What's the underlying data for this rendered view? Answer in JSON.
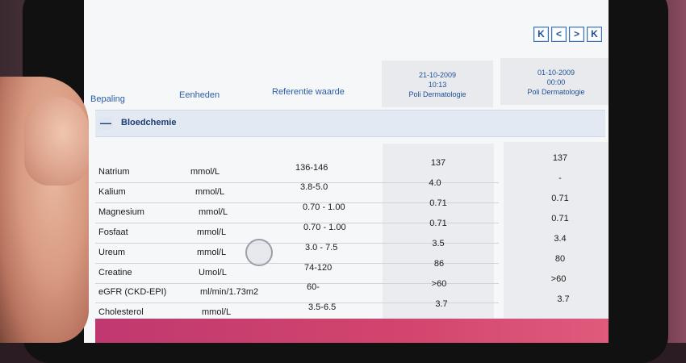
{
  "nav": {
    "first": "K",
    "prev": "<",
    "next": ">",
    "last": "K"
  },
  "columns": {
    "bepaling": "Bepaling",
    "eenheden": "Eenheden",
    "referentie": "Referentie waarde"
  },
  "dates": [
    {
      "date": "21-10-2009",
      "time": "10:13",
      "location": "Poli Dermatologie"
    },
    {
      "date": "01-10-2009",
      "time": "00:00",
      "location": "Poli Dermatologie"
    }
  ],
  "section": {
    "toggle": "—",
    "title": "Bloedchemie"
  },
  "rows": [
    {
      "name": "Natrium",
      "unit": "mmol/L",
      "ref": "136-146",
      "v1": "137",
      "v2": "137"
    },
    {
      "name": "Kalium",
      "unit": "mmol/L",
      "ref": "3.8-5.0",
      "v1": "4.0",
      "v2": "-"
    },
    {
      "name": "Magnesium",
      "unit": "mmol/L",
      "ref": "0.70 - 1.00",
      "v1": "0.71",
      "v2": "0.71"
    },
    {
      "name": "Fosfaat",
      "unit": "mmol/L",
      "ref": "0.70 - 1.00",
      "v1": "0.71",
      "v2": "0.71"
    },
    {
      "name": "Ureum",
      "unit": "mmol/L",
      "ref": "3.0 - 7.5",
      "v1": "3.5",
      "v2": "3.4"
    },
    {
      "name": "Creatine",
      "unit": "Umol/L",
      "ref": "74-120",
      "v1": "86",
      "v2": "80"
    },
    {
      "name": "eGFR (CKD-EPI)",
      "unit": "ml/min/1.73m2",
      "ref": "60-",
      "v1": ">60",
      "v2": ">60"
    },
    {
      "name": "Cholesterol",
      "unit": "mmol/L",
      "ref": "3.5-6.5",
      "v1": "3.7",
      "v2": "3.7"
    }
  ],
  "colors": {
    "accent": "#2a5fa8",
    "section_bg": "#e3e9f3",
    "bottom_bar": "#c0386f"
  }
}
